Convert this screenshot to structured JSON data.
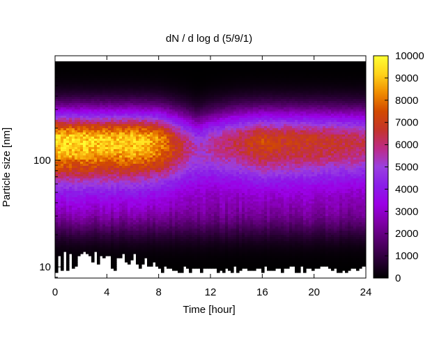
{
  "chart_data": {
    "type": "heatmap",
    "title": "dN / d log d (5/9/1)",
    "xlabel": "Time [hour]",
    "ylabel": "Particle size [nm]",
    "xlim": [
      0,
      24
    ],
    "ylim": [
      8,
      900
    ],
    "yscale": "log",
    "x_ticks": [
      0,
      4,
      8,
      12,
      16,
      20,
      24
    ],
    "y_ticks": [
      10,
      100
    ],
    "colorbar": {
      "min": 0,
      "max": 10000,
      "ticks": [
        0,
        1000,
        2000,
        3000,
        4000,
        5000,
        6000,
        7000,
        8000,
        9000,
        10000
      ],
      "palette": [
        "#000000",
        "#2a0036",
        "#55006c",
        "#7f00a6",
        "#9b00e6",
        "#8a1ee8",
        "#9a3fe0",
        "#bd2b86",
        "#c4342a",
        "#d24a00",
        "#f08c00",
        "#ffd21a",
        "#ffff33"
      ]
    },
    "series": [
      {
        "quantity": "dN/dlogd",
        "size_nm": [
          10,
          20,
          40,
          70,
          100,
          150,
          220,
          400,
          800
        ],
        "time_hours": [
          0,
          2,
          4,
          6,
          8,
          10,
          11,
          12,
          14,
          16,
          17,
          18,
          20,
          22,
          24
        ],
        "peak_concentration": [
          9400,
          9300,
          9100,
          9200,
          8600,
          6200,
          5200,
          5600,
          6400,
          7200,
          7000,
          7000,
          6800,
          6500,
          6200
        ],
        "peak_size_nm": [
          150,
          150,
          150,
          150,
          150,
          140,
          130,
          140,
          150,
          150,
          150,
          150,
          150,
          150,
          150
        ]
      }
    ]
  }
}
